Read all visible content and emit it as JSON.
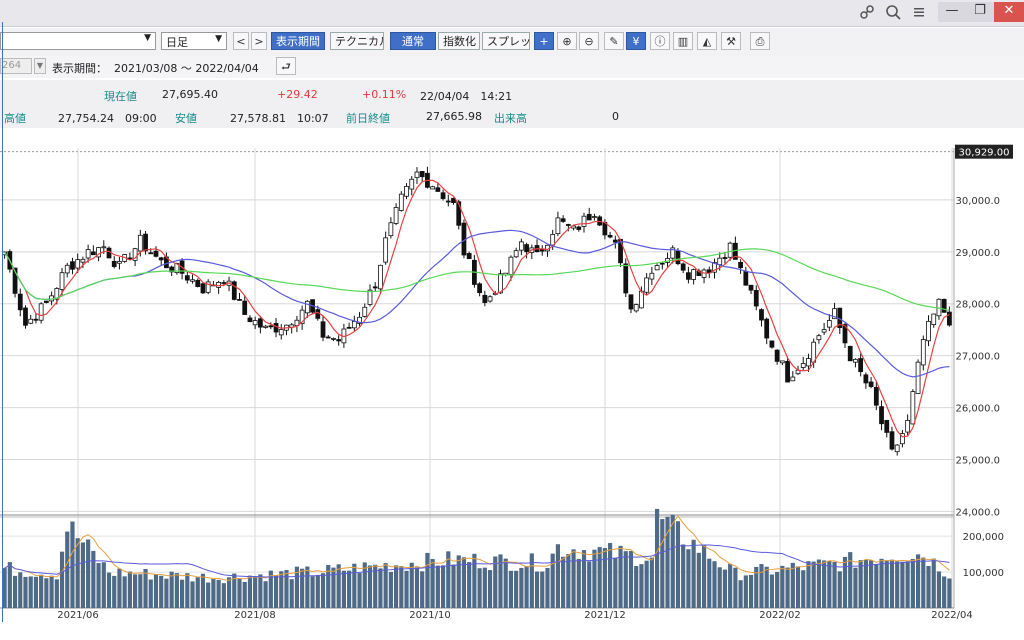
{
  "window": {
    "icons": [
      "link-icon",
      "search-icon",
      "menu-icon"
    ],
    "minimize_label": "—",
    "restore_label": "❐",
    "close_label": "✕"
  },
  "toolbar": {
    "period_value": "日足",
    "display_period_label": "表示期間",
    "technical_label": "テクニカル",
    "normal_label": "通常",
    "index_label": "指数化",
    "spread_label": "スプレッド",
    "code_value": "264",
    "period_title": "表示期間：",
    "period_range": "2021/03/08 〜 2022/04/04"
  },
  "quote": {
    "current_label": "現在値",
    "current_value": "27,695.40",
    "change": "+29.42",
    "change_pct": "+0.11%",
    "datetime": "22/04/04　14:21",
    "high_label": "高値",
    "high_value": "27,754.24　09:00",
    "low_label": "安値",
    "low_value": "27,578.81　10:07",
    "prev_label": "前日終値",
    "prev_value": "27,665.98",
    "volume_label": "出来高",
    "volume_value": "0",
    "accent": "#e0393e",
    "label_color": "#1a8a8a"
  },
  "chart_data": {
    "type": "candlestick",
    "x_tick_labels": [
      "2021/06",
      "2021/08",
      "2021/10",
      "2021/12",
      "2022/02",
      "2022/04"
    ],
    "price_axis_labels": [
      "30,000.0",
      "29,000.0",
      "28,000.0",
      "27,000.0",
      "26,000.0",
      "25,000.0",
      "24,000.0"
    ],
    "price_ticks": [
      30000,
      29000,
      28000,
      27000,
      26000,
      25000,
      24000
    ],
    "price_ylim": [
      23950,
      31000
    ],
    "max_marker": 30929,
    "max_marker_label": "30,929.00",
    "volume_axis_labels": [
      "200,000",
      "100,000"
    ],
    "volume_ticks": [
      200000,
      100000
    ],
    "volume_ylim": [
      0,
      245000
    ],
    "close_anchors": [
      [
        0,
        29000
      ],
      [
        4,
        27600
      ],
      [
        8,
        28000
      ],
      [
        12,
        28700
      ],
      [
        16,
        29000
      ],
      [
        19,
        29100
      ],
      [
        22,
        28700
      ],
      [
        26,
        29200
      ],
      [
        30,
        28800
      ],
      [
        34,
        28600
      ],
      [
        38,
        28300
      ],
      [
        42,
        28500
      ],
      [
        46,
        27800
      ],
      [
        50,
        27500
      ],
      [
        54,
        27600
      ],
      [
        58,
        28000
      ],
      [
        61,
        27400
      ],
      [
        64,
        27300
      ],
      [
        68,
        27800
      ],
      [
        71,
        28400
      ],
      [
        73,
        29200
      ],
      [
        76,
        30000
      ],
      [
        79,
        30500
      ],
      [
        82,
        30300
      ],
      [
        86,
        29900
      ],
      [
        88,
        29000
      ],
      [
        92,
        28000
      ],
      [
        96,
        28600
      ],
      [
        99,
        29200
      ],
      [
        102,
        28900
      ],
      [
        106,
        29600
      ],
      [
        109,
        29400
      ],
      [
        113,
        29800
      ],
      [
        117,
        29100
      ],
      [
        120,
        27900
      ],
      [
        124,
        28700
      ],
      [
        128,
        29000
      ],
      [
        131,
        28600
      ],
      [
        135,
        28700
      ],
      [
        139,
        29100
      ],
      [
        142,
        28400
      ],
      [
        146,
        27400
      ],
      [
        150,
        26600
      ],
      [
        153,
        26900
      ],
      [
        156,
        27400
      ],
      [
        159,
        27800
      ],
      [
        162,
        27000
      ],
      [
        166,
        26300
      ],
      [
        170,
        25100
      ],
      [
        173,
        25700
      ],
      [
        176,
        27300
      ],
      [
        179,
        28000
      ],
      [
        181,
        27700
      ]
    ],
    "volume_anchors": [
      [
        0,
        110000
      ],
      [
        10,
        95000
      ],
      [
        12,
        230000
      ],
      [
        20,
        100000
      ],
      [
        40,
        85000
      ],
      [
        60,
        100000
      ],
      [
        70,
        115000
      ],
      [
        86,
        135000
      ],
      [
        104,
        125000
      ],
      [
        106,
        170000
      ],
      [
        124,
        140000
      ],
      [
        125,
        250000
      ],
      [
        140,
        95000
      ],
      [
        160,
        125000
      ],
      [
        170,
        150000
      ],
      [
        176,
        150000
      ],
      [
        181,
        95000
      ]
    ],
    "candle_count": 182,
    "series": [
      {
        "name": "",
        "type": "line",
        "period": 5,
        "color": "#e84040"
      },
      {
        "name": "",
        "type": "line",
        "period": 25,
        "color": "#5a5adc"
      },
      {
        "name": "",
        "type": "line",
        "period": 75,
        "color": "#58d858"
      }
    ],
    "volume_color": "#4f6a86",
    "grid": true
  }
}
